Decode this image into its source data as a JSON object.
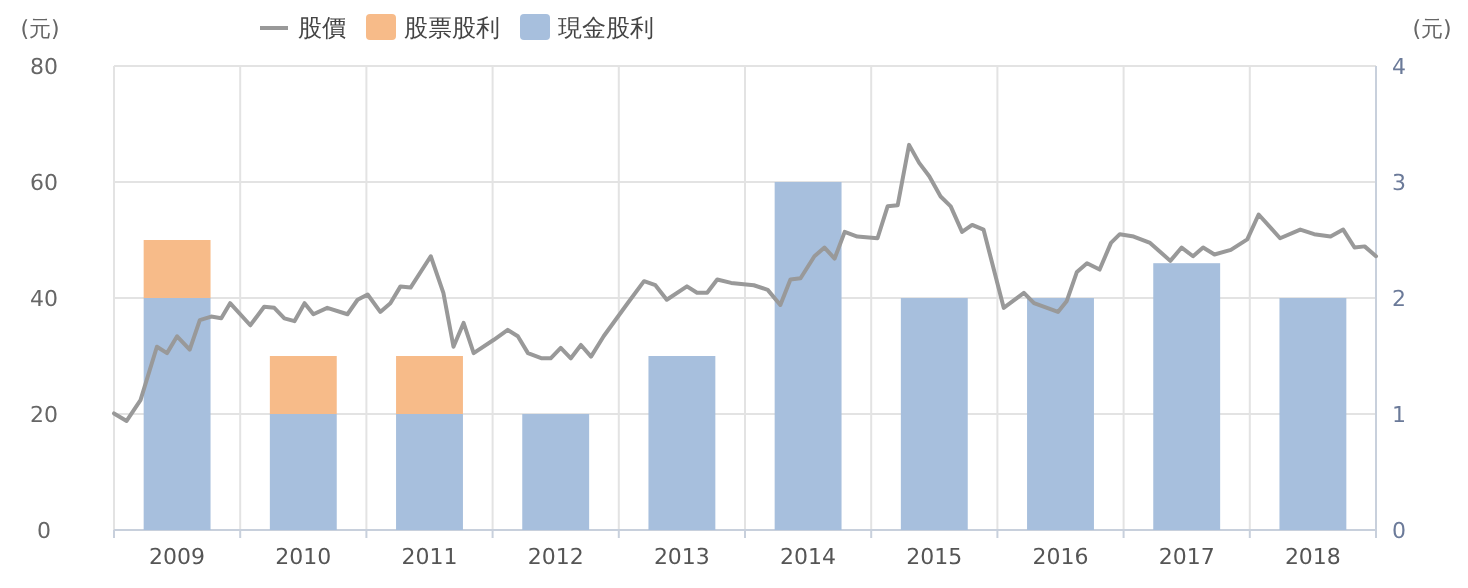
{
  "chart_data": {
    "type": "bar",
    "ylabel": "(元)",
    "y2label": "(元)",
    "xlim": [
      2009,
      2019
    ],
    "xticks": [
      {
        "value": 2009,
        "label": null
      },
      {
        "value": 2009.5,
        "label": "2009"
      },
      {
        "value": 2010,
        "label": null
      },
      {
        "value": 2010.5,
        "label": "2010"
      },
      {
        "value": 2011,
        "label": null
      },
      {
        "value": 2011.5,
        "label": "2011"
      },
      {
        "value": 2012,
        "label": null
      },
      {
        "value": 2012.5,
        "label": "2012"
      },
      {
        "value": 2013,
        "label": null
      },
      {
        "value": 2013.5,
        "label": "2013"
      },
      {
        "value": 2014,
        "label": null
      },
      {
        "value": 2014.5,
        "label": "2014"
      },
      {
        "value": 2015,
        "label": null
      },
      {
        "value": 2015.5,
        "label": "2015"
      },
      {
        "value": 2016,
        "label": null
      },
      {
        "value": 2016.5,
        "label": "2016"
      },
      {
        "value": 2017,
        "label": null
      },
      {
        "value": 2017.5,
        "label": "2017"
      },
      {
        "value": 2018,
        "label": null
      },
      {
        "value": 2018.5,
        "label": "2018"
      },
      {
        "value": 2019,
        "label": null
      }
    ],
    "ylim": [
      0,
      80
    ],
    "yticks": [
      0,
      20,
      40,
      60,
      80
    ],
    "y2lim": [
      0,
      4
    ],
    "y2ticks": [
      0,
      1,
      2,
      3,
      4
    ],
    "stacked": true,
    "grid": true,
    "legend": "top",
    "series": [
      {
        "name": "股價",
        "type": "line",
        "color": "#999999",
        "x": [
          2009.0,
          2009.1,
          2009.21,
          2009.34,
          2009.42,
          2009.5,
          2009.6,
          2009.68,
          2009.77,
          2009.85,
          2009.92,
          2010.08,
          2010.19,
          2010.27,
          2010.35,
          2010.43,
          2010.51,
          2010.58,
          2010.69,
          2010.85,
          2010.93,
          2011.01,
          2011.11,
          2011.19,
          2011.27,
          2011.35,
          2011.51,
          2011.61,
          2011.69,
          2011.77,
          2011.85,
          2012.01,
          2012.12,
          2012.2,
          2012.28,
          2012.39,
          2012.46,
          2012.54,
          2012.62,
          2012.7,
          2012.78,
          2012.88,
          2013.07,
          2013.2,
          2013.29,
          2013.38,
          2013.54,
          2013.62,
          2013.7,
          2013.78,
          2013.89,
          2014.07,
          2014.18,
          2014.28,
          2014.36,
          2014.44,
          2014.55,
          2014.63,
          2014.71,
          2014.79,
          2014.89,
          2015.05,
          2015.13,
          2015.21,
          2015.3,
          2015.38,
          2015.46,
          2015.55,
          2015.63,
          2015.72,
          2015.8,
          2015.89,
          2016.05,
          2016.21,
          2016.29,
          2016.48,
          2016.55,
          2016.63,
          2016.71,
          2016.81,
          2016.9,
          2016.97,
          2017.08,
          2017.21,
          2017.37,
          2017.46,
          2017.55,
          2017.63,
          2017.72,
          2017.85,
          2017.98,
          2018.07,
          2018.24,
          2018.4,
          2018.51,
          2018.64,
          2018.74,
          2018.83,
          2018.91,
          2019.0
        ],
        "values": [
          20.1,
          18.8,
          22.4,
          31.6,
          30.5,
          33.4,
          31.1,
          36.2,
          36.8,
          36.5,
          39.1,
          35.3,
          38.5,
          38.3,
          36.5,
          36.0,
          39.1,
          37.2,
          38.3,
          37.2,
          39.7,
          40.6,
          37.6,
          39.1,
          42.0,
          41.8,
          47.2,
          40.9,
          31.6,
          35.7,
          30.5,
          32.8,
          34.5,
          33.4,
          30.5,
          29.6,
          29.6,
          31.4,
          29.6,
          31.9,
          29.9,
          33.4,
          39.1,
          42.9,
          42.2,
          39.7,
          42.0,
          40.9,
          40.9,
          43.2,
          42.6,
          42.2,
          41.4,
          38.8,
          43.2,
          43.4,
          47.2,
          48.7,
          46.8,
          51.4,
          50.6,
          50.3,
          55.8,
          56.0,
          66.4,
          63.3,
          61.0,
          57.5,
          55.8,
          51.4,
          52.6,
          51.8,
          38.3,
          40.9,
          39.1,
          37.6,
          39.5,
          44.5,
          46.0,
          44.9,
          49.5,
          51.0,
          50.6,
          49.5,
          46.4,
          48.7,
          47.2,
          48.7,
          47.5,
          48.3,
          50.1,
          54.4,
          50.3,
          51.8,
          51.0,
          50.6,
          51.8,
          48.7,
          48.9,
          47.2
        ]
      },
      {
        "name": "現金股利",
        "axis": "y2",
        "color": "#a7bfdd",
        "x": [
          2009.5,
          2010.5,
          2011.5,
          2012.5,
          2013.5,
          2014.5,
          2015.5,
          2016.5,
          2017.5,
          2018.5
        ],
        "values": [
          2,
          1,
          1,
          1,
          1.5,
          3,
          2,
          2,
          2.3,
          2
        ]
      },
      {
        "name": "股票股利",
        "axis": "y2",
        "color": "#f7bb89",
        "x": [
          2009.5,
          2010.5,
          2011.5
        ],
        "values": [
          0.5,
          0.5,
          0.5
        ]
      }
    ]
  }
}
